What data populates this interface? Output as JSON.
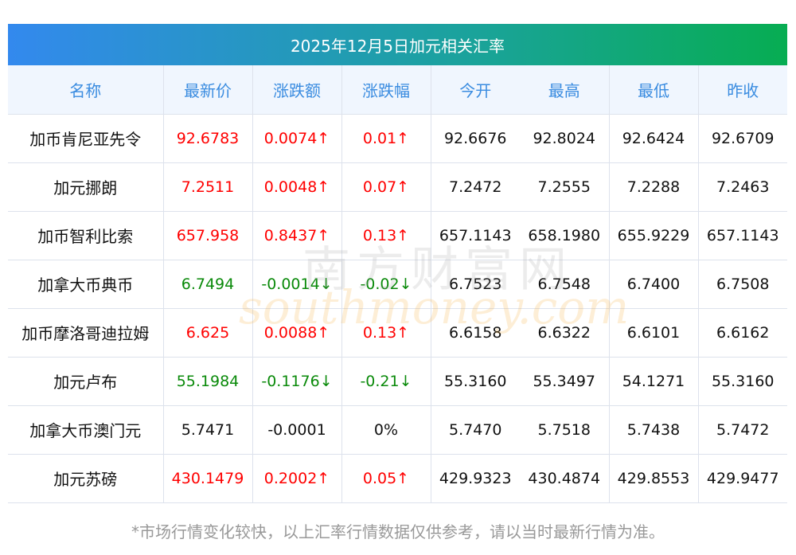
{
  "title": "2025年12月5日加元相关汇率",
  "headers": [
    "名称",
    "最新价",
    "涨跌额",
    "涨跌幅",
    "今开",
    "最高",
    "最低",
    "昨收"
  ],
  "rows": [
    {
      "name": "加币肯尼亚先令",
      "last": "92.6783",
      "chg": "0.0074↑",
      "pct": "0.01↑",
      "open": "92.6676",
      "high": "92.8024",
      "low": "92.6424",
      "prev": "92.6709",
      "dir": "up"
    },
    {
      "name": "加元挪朗",
      "last": "7.2511",
      "chg": "0.0048↑",
      "pct": "0.07↑",
      "open": "7.2472",
      "high": "7.2555",
      "low": "7.2288",
      "prev": "7.2463",
      "dir": "up"
    },
    {
      "name": "加币智利比索",
      "last": "657.958",
      "chg": "0.8437↑",
      "pct": "0.13↑",
      "open": "657.1143",
      "high": "658.1980",
      "low": "655.9229",
      "prev": "657.1143",
      "dir": "up"
    },
    {
      "name": "加拿大币典币",
      "last": "6.7494",
      "chg": "-0.0014↓",
      "pct": "-0.02↓",
      "open": "6.7523",
      "high": "6.7548",
      "low": "6.7400",
      "prev": "6.7508",
      "dir": "down"
    },
    {
      "name": "加币摩洛哥迪拉姆",
      "last": "6.625",
      "chg": "0.0088↑",
      "pct": "0.13↑",
      "open": "6.6158",
      "high": "6.6322",
      "low": "6.6101",
      "prev": "6.6162",
      "dir": "up"
    },
    {
      "name": "加元卢布",
      "last": "55.1984",
      "chg": "-0.1176↓",
      "pct": "-0.21↓",
      "open": "55.3160",
      "high": "55.3497",
      "low": "54.1271",
      "prev": "55.3160",
      "dir": "down"
    },
    {
      "name": "加拿大币澳门元",
      "last": "5.7471",
      "chg": "-0.0001",
      "pct": "0%",
      "open": "5.7470",
      "high": "5.7518",
      "low": "5.7438",
      "prev": "5.7472",
      "dir": "flat"
    },
    {
      "name": "加元苏磅",
      "last": "430.1479",
      "chg": "0.2002↑",
      "pct": "0.05↑",
      "open": "429.9323",
      "high": "430.4874",
      "low": "429.8553",
      "prev": "429.9477",
      "dir": "up"
    }
  ],
  "watermark": {
    "cn": "南方财富网",
    "en": "southmoney.com"
  },
  "footer": "*市场行情变化较快，以上汇率行情数据仅供参考，请以当时最新行情为准。",
  "colors": {
    "up": "#ff0000",
    "down": "#0a8a0a",
    "header": "#3a8ce0"
  }
}
